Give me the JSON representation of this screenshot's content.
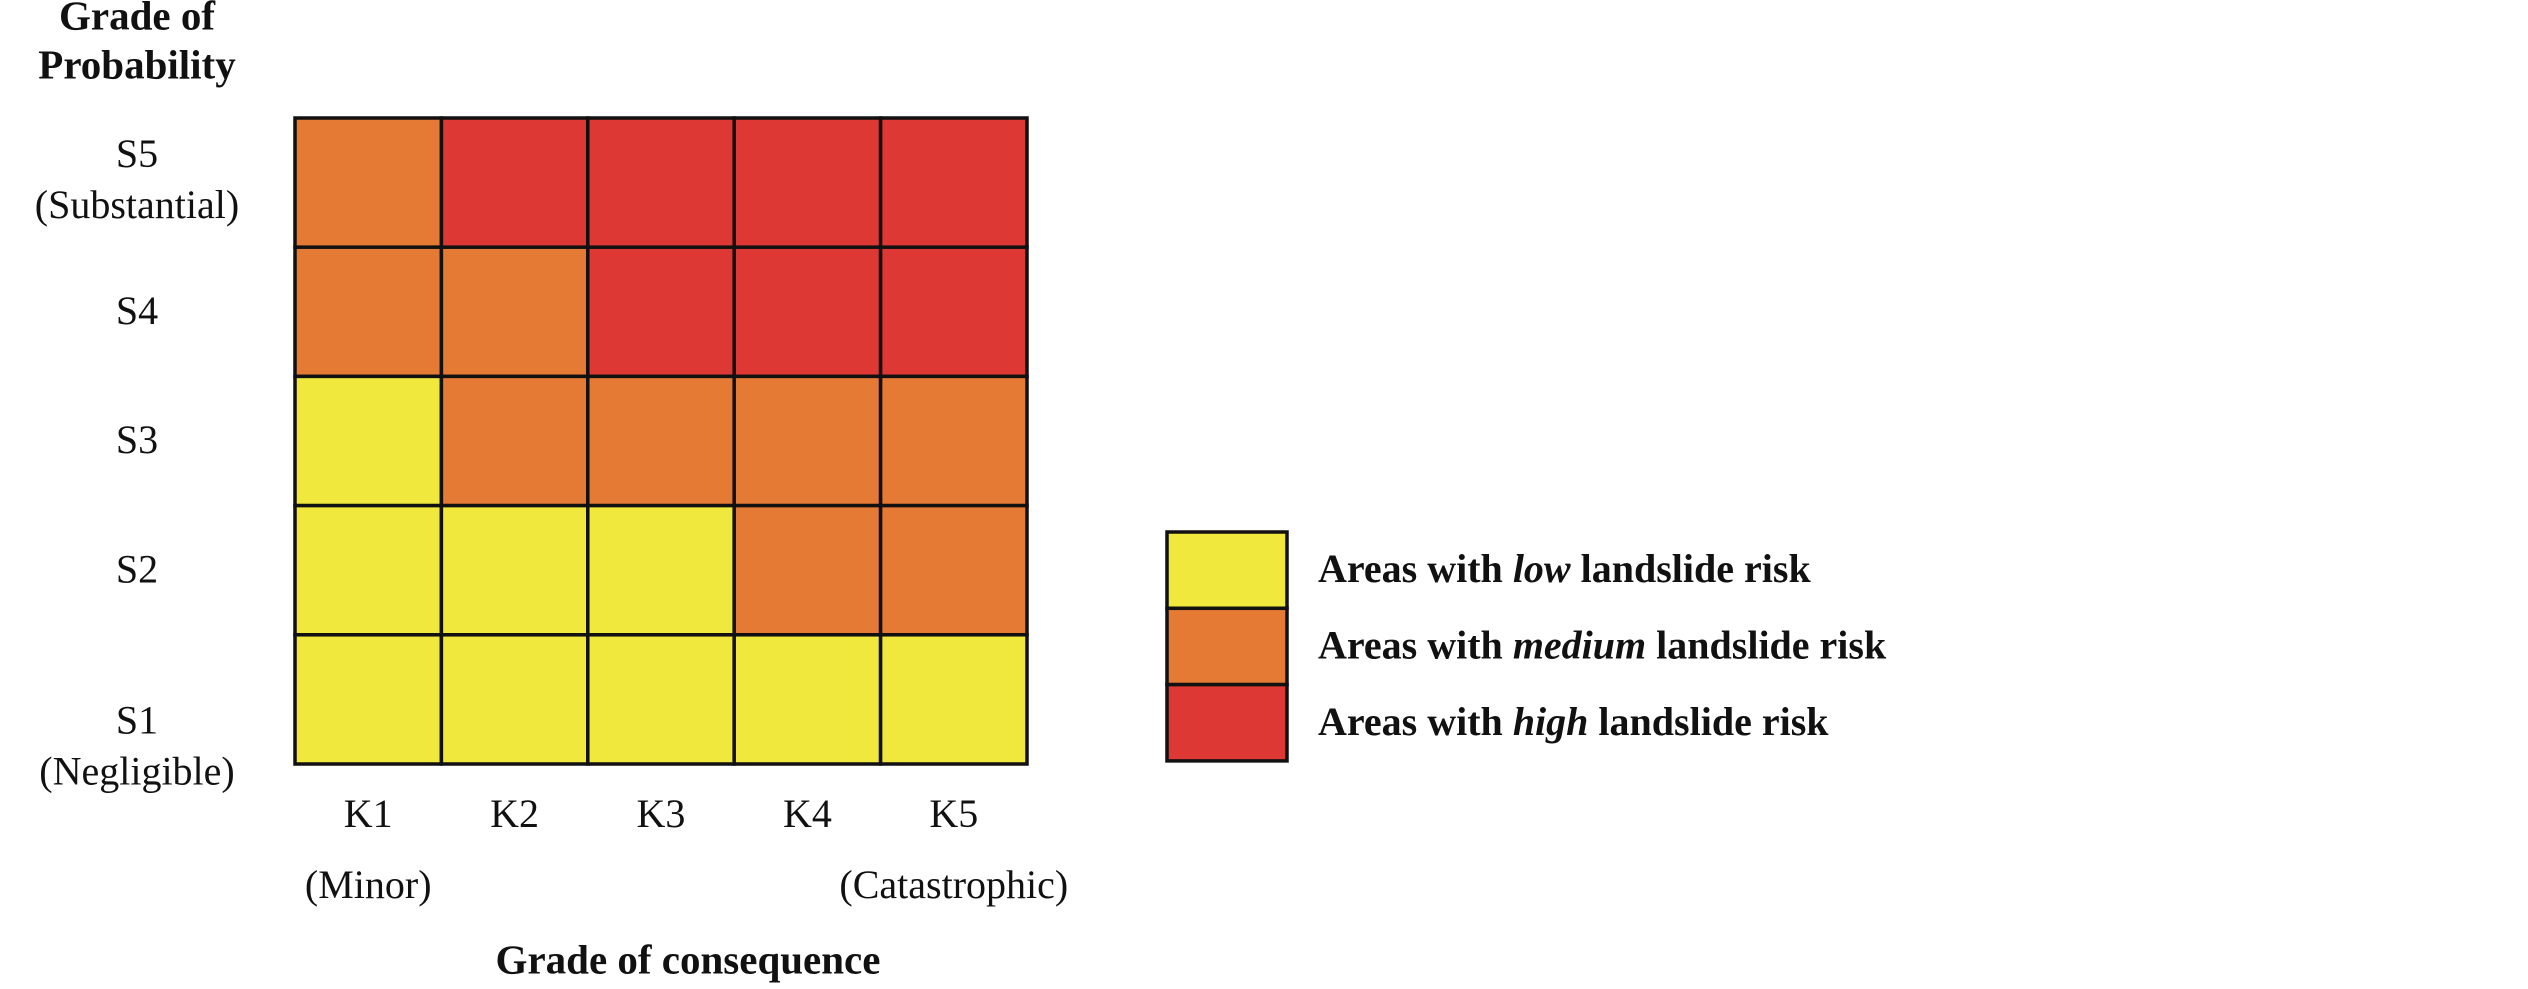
{
  "y_title": [
    "Grade of",
    "Probability"
  ],
  "x_title": "Grade of consequence",
  "rows": [
    {
      "label": "S5",
      "note": "(Substantial)"
    },
    {
      "label": "S4"
    },
    {
      "label": "S3"
    },
    {
      "label": "S2"
    },
    {
      "label": "S1",
      "note": "(Negligible)"
    }
  ],
  "columns": [
    {
      "label": "K1",
      "note": "(Minor)"
    },
    {
      "label": "K2"
    },
    {
      "label": "K3"
    },
    {
      "label": "K4"
    },
    {
      "label": "K5",
      "note": "(Catastrophic)"
    }
  ],
  "matrix": [
    [
      "#e57a35",
      "#dd3833",
      "#dd3833",
      "#dd3833",
      "#dd3833"
    ],
    [
      "#e57a35",
      "#e57a35",
      "#dd3833",
      "#dd3833",
      "#dd3833"
    ],
    [
      "#f0e83c",
      "#e57a35",
      "#e57a35",
      "#e57a35",
      "#e57a35"
    ],
    [
      "#f0e83c",
      "#f0e83c",
      "#f0e83c",
      "#e57a35",
      "#e57a35"
    ],
    [
      "#f0e83c",
      "#f0e83c",
      "#f0e83c",
      "#f0e83c",
      "#f0e83c"
    ]
  ],
  "legend": [
    {
      "prefix": "Areas with ",
      "level": "low",
      "suffix": " landslide risk",
      "color": "#f0e83c"
    },
    {
      "prefix": "Areas with ",
      "level": "medium",
      "suffix": " landslide risk",
      "color": "#e57a35"
    },
    {
      "prefix": "Areas with ",
      "level": "high",
      "suffix": " landslide risk",
      "color": "#dd3833"
    }
  ]
}
